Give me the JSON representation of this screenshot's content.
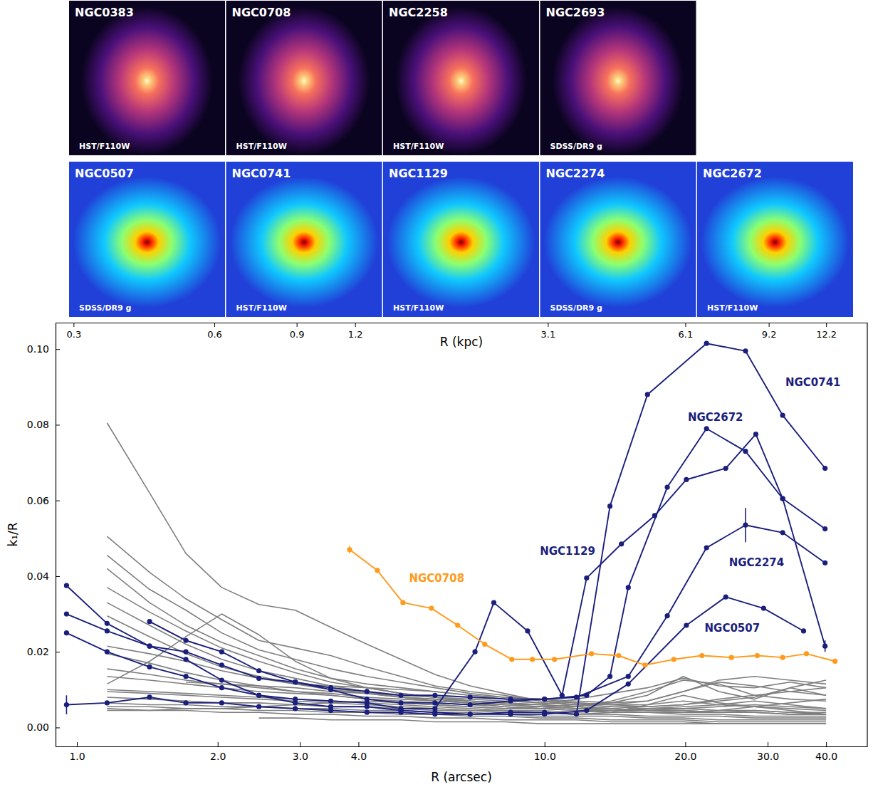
{
  "panels": {
    "rows": [
      [
        {
          "name": "NGC0383",
          "source": "HST/F110W"
        },
        {
          "name": "NGC0708",
          "source": "HST/F110W"
        },
        {
          "name": "NGC2258",
          "source": "HST/F110W"
        },
        {
          "name": "NGC2693",
          "source": "SDSS/DR9 g"
        }
      ],
      [
        {
          "name": "NGC0507",
          "source": "SDSS/DR9 g"
        },
        {
          "name": "NGC0741",
          "source": "HST/F110W"
        },
        {
          "name": "NGC1129",
          "source": "HST/F110W"
        },
        {
          "name": "NGC2274",
          "source": "SDSS/DR9 g"
        },
        {
          "name": "NGC2672",
          "source": "HST/F110W"
        }
      ]
    ]
  },
  "chart_data": {
    "type": "line",
    "log": "x",
    "x_label": "R (arcsec)",
    "x2_label": "R (kpc)",
    "y_label": "k₁/R",
    "xlim": [
      0.9,
      49
    ],
    "xticks": [
      {
        "value": 1,
        "label": "1.0"
      },
      {
        "value": 2,
        "label": "2.0"
      },
      {
        "value": 3,
        "label": "3.0"
      },
      {
        "value": 4,
        "label": "4.0"
      },
      {
        "value": 10,
        "label": "10.0"
      },
      {
        "value": 20,
        "label": "20.0"
      },
      {
        "value": 30,
        "label": "30.0"
      },
      {
        "value": 40,
        "label": "40.0"
      }
    ],
    "x2lim": [
      0.2745,
      14.945
    ],
    "x2ticks": [
      0.3,
      0.6,
      0.9,
      1.2,
      3.1,
      6.1,
      9.2,
      12.2
    ],
    "ylim": [
      -0.005,
      0.107
    ],
    "yticks": [
      {
        "value": 0,
        "label": "0.00"
      },
      {
        "value": 0.02,
        "label": "0.02"
      },
      {
        "value": 0.04,
        "label": "0.04"
      },
      {
        "value": 0.06,
        "label": "0.06"
      },
      {
        "value": 0.08,
        "label": "0.08"
      },
      {
        "value": 0.1,
        "label": "0.10"
      }
    ],
    "x": [
      1.16,
      1.43,
      1.71,
      2.04,
      2.45,
      2.93,
      3.49,
      4.17,
      4.93,
      5.83,
      6.93,
      8.2,
      9.8,
      11.7,
      13.9,
      16.6,
      19.8,
      23.6,
      28.1,
      33.5,
      40.0
    ],
    "series": [
      {
        "color": "#7f7f7f",
        "values": [
          0.0805,
          0.062,
          0.046,
          0.037,
          0.0325,
          0.031,
          0.0265,
          0.022,
          0.018,
          0.014,
          0.011,
          0.009,
          0.007,
          0.006,
          0.006,
          0.006,
          0.007,
          0.006,
          0.007,
          0.006,
          0.005
        ]
      },
      {
        "color": "#7f7f7f",
        "values": [
          0.0505,
          0.041,
          0.034,
          0.0285,
          0.023,
          0.021,
          0.019,
          0.016,
          0.0135,
          0.011,
          0.0095,
          0.0085,
          0.007,
          0.0065,
          0.006,
          0.007,
          0.0095,
          0.012,
          0.011,
          0.0095,
          0.0085
        ]
      },
      {
        "color": "#7f7f7f",
        "values": [
          0.0455,
          0.0365,
          0.031,
          0.025,
          0.0205,
          0.018,
          0.0155,
          0.0135,
          0.012,
          0.0105,
          0.009,
          0.008,
          0.0075,
          0.0065,
          0.006,
          0.0055,
          0.006,
          0.0075,
          0.0085,
          0.0095,
          0.0105
        ]
      },
      {
        "color": "#7f7f7f",
        "values": [
          0.042,
          0.033,
          0.027,
          0.0225,
          0.019,
          0.0155,
          0.013,
          0.0115,
          0.0105,
          0.0095,
          0.0085,
          0.0075,
          0.0065,
          0.006,
          0.0055,
          0.005,
          0.005,
          0.0055,
          0.006,
          0.0055,
          0.005
        ]
      },
      {
        "color": "#7f7f7f",
        "values": [
          0.037,
          0.0305,
          0.0255,
          0.021,
          0.0175,
          0.0145,
          0.012,
          0.0105,
          0.009,
          0.008,
          0.007,
          0.006,
          0.0055,
          0.005,
          0.0045,
          0.0045,
          0.005,
          0.0045,
          0.0045,
          0.004,
          0.004
        ]
      },
      {
        "color": "#7f7f7f",
        "values": [
          0.033,
          0.027,
          0.022,
          0.018,
          0.015,
          0.013,
          0.011,
          0.0095,
          0.008,
          0.0075,
          0.0065,
          0.006,
          0.0055,
          0.005,
          0.005,
          0.0045,
          0.004,
          0.004,
          0.0045,
          0.004,
          0.0035
        ]
      },
      {
        "color": "#7f7f7f",
        "values": [
          0.0295,
          0.024,
          0.0195,
          0.016,
          0.0135,
          0.0115,
          0.0105,
          0.009,
          0.008,
          0.007,
          0.0065,
          0.0055,
          0.005,
          0.0045,
          0.004,
          0.004,
          0.0035,
          0.0035,
          0.003,
          0.003,
          0.003
        ]
      },
      {
        "color": "#7f7f7f",
        "values": [
          0.0215,
          0.0195,
          0.0175,
          0.015,
          0.013,
          0.0115,
          0.01,
          0.009,
          0.008,
          0.0075,
          0.007,
          0.0065,
          0.006,
          0.0075,
          0.009,
          0.0105,
          0.013,
          0.011,
          0.0105,
          0.012,
          0.0105
        ]
      },
      {
        "color": "#7f7f7f",
        "values": [
          0.0195,
          0.017,
          0.0145,
          0.0125,
          0.011,
          0.0095,
          0.0085,
          0.0075,
          0.0065,
          0.006,
          0.0055,
          0.005,
          0.005,
          0.0055,
          0.007,
          0.0095,
          0.0125,
          0.0115,
          0.0085,
          0.0075,
          0.007
        ]
      },
      {
        "color": "#7f7f7f",
        "values": [
          0.0155,
          0.014,
          0.0125,
          0.0115,
          0.0105,
          0.0095,
          0.009,
          0.008,
          0.0075,
          0.007,
          0.0065,
          0.006,
          0.006,
          0.0055,
          0.005,
          0.0045,
          0.0045,
          0.004,
          0.004,
          0.0035,
          0.0035
        ]
      },
      {
        "color": "#7f7f7f",
        "values": [
          0.0135,
          0.0125,
          0.0115,
          0.0105,
          0.0095,
          0.009,
          0.0085,
          0.0075,
          0.007,
          0.0065,
          0.006,
          0.0055,
          0.005,
          0.0045,
          0.0045,
          0.004,
          0.004,
          0.0045,
          0.0055,
          0.0065,
          0.0075
        ]
      },
      {
        "color": "#7f7f7f",
        "values": [
          0.0115,
          0.0175,
          0.024,
          0.03,
          0.0245,
          0.0175,
          0.013,
          0.0105,
          0.009,
          0.008,
          0.007,
          0.0065,
          0.006,
          0.0055,
          0.005,
          0.0045,
          0.0045,
          0.004,
          0.004,
          0.0035,
          0.0035
        ]
      },
      {
        "color": "#7f7f7f",
        "values": [
          0.01,
          0.0095,
          0.009,
          0.0085,
          0.008,
          0.0075,
          0.007,
          0.0065,
          0.006,
          0.0055,
          0.005,
          0.0045,
          0.0045,
          0.004,
          0.0045,
          0.005,
          0.0055,
          0.006,
          0.0055,
          0.005,
          0.0045
        ]
      },
      {
        "color": "#7f7f7f",
        "values": [
          0.008,
          0.0075,
          0.007,
          0.0065,
          0.0065,
          0.006,
          0.0055,
          0.0055,
          0.005,
          0.0045,
          0.0045,
          0.004,
          0.004,
          0.0035,
          0.0035,
          0.003,
          0.003,
          0.003,
          0.0025,
          0.0025,
          0.0025
        ]
      },
      {
        "color": "#7f7f7f",
        "values": [
          0.0065,
          0.006,
          0.006,
          0.0055,
          0.0055,
          0.005,
          0.005,
          0.0045,
          0.0045,
          0.004,
          0.004,
          0.0035,
          0.003,
          0.003,
          0.003,
          0.0025,
          0.0025,
          0.002,
          0.002,
          0.002,
          0.002
        ]
      },
      {
        "color": "#7f7f7f",
        "values": [
          0.0055,
          0.0055,
          0.005,
          0.005,
          0.0045,
          0.0045,
          0.004,
          0.004,
          0.0035,
          0.0035,
          0.003,
          0.003,
          0.0025,
          0.0025,
          0.002,
          0.002,
          0.002,
          0.0015,
          0.0015,
          0.0015,
          0.0015
        ]
      },
      {
        "color": "#7f7f7f",
        "values": [
          0.005,
          0.0045,
          0.0045,
          0.004,
          0.004,
          0.0035,
          0.0035,
          0.003,
          0.003,
          0.0025,
          0.0025,
          0.002,
          0.002,
          0.002,
          0.0015,
          0.0015,
          0.0015,
          0.001,
          0.001,
          0.001,
          0.001
        ]
      },
      {
        "color": "#7f7f7f",
        "values": [
          null,
          null,
          null,
          null,
          0.0025,
          0.0025,
          0.002,
          0.002,
          0.002,
          0.0015,
          0.0015,
          0.0015,
          0.001,
          0.001,
          0.001,
          0.001,
          0.001,
          0.001,
          0.001,
          0.001,
          0.001
        ]
      },
      {
        "color": "#7f7f7f",
        "values": [
          null,
          null,
          0.012,
          0.0115,
          0.011,
          0.0105,
          0.0095,
          0.009,
          0.0085,
          0.008,
          0.0075,
          0.007,
          0.0065,
          0.006,
          0.0055,
          0.0055,
          0.006,
          0.007,
          0.008,
          0.0105,
          0.0125
        ]
      },
      {
        "color": "#7f7f7f",
        "values": [
          0.0045,
          0.0045,
          0.005,
          0.005,
          0.0055,
          0.006,
          0.0065,
          0.007,
          0.0065,
          0.006,
          0.0055,
          0.005,
          0.0055,
          0.006,
          0.0065,
          0.0085,
          0.0135,
          0.0095,
          0.0075,
          0.0105,
          0.0085
        ]
      },
      {
        "color": "#7f7f7f",
        "values": [
          null,
          null,
          null,
          null,
          null,
          0.0115,
          0.011,
          0.0105,
          0.01,
          0.0095,
          0.0085,
          0.008,
          0.0075,
          0.007,
          0.0065,
          0.007,
          0.0095,
          0.0125,
          0.0135,
          0.0125,
          0.0115
        ]
      },
      {
        "color": "#7f7f7f",
        "values": [
          0.0095,
          0.009,
          0.0085,
          0.008,
          0.0075,
          0.007,
          0.0065,
          0.006,
          0.0055,
          0.005,
          0.0045,
          0.0045,
          0.004,
          0.0035,
          0.004,
          0.006,
          0.0085,
          0.0065,
          0.0055,
          0.0045,
          0.0035
        ]
      },
      {
        "name": "NGC0741",
        "color": "#1b1f7c",
        "marker": "circle",
        "x": [
          0.95,
          1.16,
          1.43,
          1.71,
          2.04,
          2.45,
          2.93,
          3.49,
          4.17,
          4.93,
          5.83,
          6.93,
          8.46,
          10.0,
          11.7,
          13.8,
          16.6,
          22.2,
          26.9,
          32.3,
          39.8
        ],
        "values": [
          0.0375,
          0.0275,
          0.0215,
          0.018,
          0.0125,
          0.0085,
          0.0065,
          0.0055,
          0.0055,
          0.0045,
          0.004,
          0.0035,
          0.004,
          0.004,
          0.0035,
          0.0585,
          0.088,
          0.1015,
          0.0995,
          0.0825,
          0.0685
        ]
      },
      {
        "name": "NGC2672",
        "color": "#1b1f7c",
        "marker": "circle",
        "x": [
          0.95,
          1.16,
          1.43,
          1.71,
          2.04,
          2.45,
          2.93,
          3.49,
          4.17,
          4.93,
          5.83,
          6.93,
          8.46,
          10.0,
          12.3,
          13.8,
          15.1,
          18.3,
          22.2,
          26.9,
          32.3,
          39.8
        ],
        "values": [
          0.03,
          0.0255,
          0.0215,
          0.02,
          0.0165,
          0.013,
          0.012,
          0.0105,
          0.0095,
          0.0085,
          0.0085,
          0.008,
          0.0075,
          0.0075,
          0.0085,
          0.0135,
          0.037,
          0.0635,
          0.079,
          0.073,
          0.0605,
          0.0525
        ]
      },
      {
        "name": "NGC1129",
        "color": "#1b1f7c",
        "marker": "circle",
        "x": [
          0.95,
          1.16,
          1.43,
          1.71,
          2.04,
          2.45,
          2.93,
          3.49,
          4.17,
          4.93,
          5.83,
          7.1,
          7.79,
          9.2,
          10.9,
          12.3,
          14.6,
          17.2,
          20.1,
          24.4,
          28.3,
          32.3,
          39.8
        ],
        "values": [
          0.025,
          0.02,
          0.016,
          0.0135,
          0.0105,
          0.0085,
          0.0075,
          0.007,
          0.0065,
          0.005,
          0.005,
          0.02,
          0.033,
          0.0255,
          0.0085,
          0.0395,
          0.0485,
          0.056,
          0.0655,
          0.0685,
          0.0775,
          0.0605,
          0.0215
        ],
        "errors": [
          null,
          null,
          null,
          null,
          null,
          null,
          null,
          null,
          null,
          null,
          null,
          null,
          null,
          null,
          null,
          null,
          null,
          null,
          null,
          null,
          null,
          null,
          0.0015
        ]
      },
      {
        "name": "NGC2274",
        "color": "#1b1f7c",
        "marker": "circle",
        "x": [
          1.43,
          1.71,
          2.04,
          2.45,
          2.93,
          3.49,
          4.17,
          4.93,
          5.83,
          6.93,
          8.46,
          10.0,
          11.7,
          15.1,
          18.3,
          22.2,
          26.9,
          32.3,
          39.8
        ],
        "values": [
          0.028,
          0.023,
          0.02,
          0.015,
          0.012,
          0.01,
          0.0075,
          0.0065,
          0.0065,
          0.006,
          0.007,
          0.0075,
          0.008,
          0.0135,
          0.0295,
          0.0475,
          0.0535,
          0.0515,
          0.0435
        ],
        "errors": [
          null,
          null,
          null,
          null,
          null,
          null,
          null,
          null,
          null,
          null,
          null,
          null,
          null,
          null,
          null,
          null,
          0.0045,
          null,
          null
        ]
      },
      {
        "name": "NGC0507",
        "color": "#1b1f7c",
        "marker": "circle",
        "x": [
          0.95,
          1.16,
          1.43,
          1.71,
          2.04,
          2.45,
          2.93,
          3.49,
          4.17,
          4.93,
          5.83,
          6.93,
          8.46,
          10.0,
          12.3,
          15.1,
          20.1,
          24.4,
          29.4,
          35.8
        ],
        "values": [
          0.006,
          0.0065,
          0.008,
          0.0065,
          0.0065,
          0.0055,
          0.005,
          0.0045,
          0.004,
          0.004,
          0.0035,
          0.0035,
          0.0035,
          0.0035,
          0.0045,
          0.0115,
          0.027,
          0.0345,
          0.0315,
          0.0255
        ],
        "errors": [
          0.0025,
          null,
          null,
          null,
          null,
          null,
          null,
          null,
          null,
          null,
          null,
          null,
          null,
          null,
          null,
          null,
          null,
          null,
          null,
          null
        ]
      },
      {
        "name": "NGC0708",
        "color": "#ff9a1a",
        "marker": "circle",
        "x": [
          3.83,
          4.39,
          4.98,
          5.73,
          6.52,
          7.45,
          8.51,
          9.42,
          10.5,
          12.6,
          14.4,
          16.4,
          18.9,
          21.7,
          25.1,
          28.5,
          32.3,
          36.3,
          41.8
        ],
        "values": [
          0.047,
          0.0415,
          0.033,
          0.0315,
          0.027,
          0.022,
          0.018,
          0.018,
          0.018,
          0.0195,
          0.019,
          0.0165,
          0.018,
          0.019,
          0.0185,
          0.019,
          0.0185,
          0.0195,
          0.0175
        ],
        "errors": [
          0.001,
          null,
          null,
          null,
          null,
          null,
          null,
          null,
          null,
          null,
          null,
          null,
          null,
          null,
          null,
          null,
          null,
          null,
          null
        ]
      }
    ]
  }
}
